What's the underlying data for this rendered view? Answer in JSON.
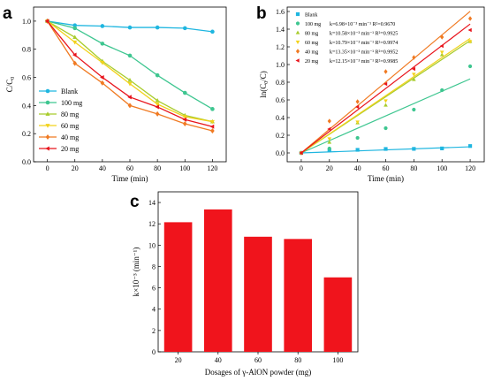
{
  "chart_data": [
    {
      "id": "a",
      "panel_label": "a",
      "type": "line",
      "xlabel": "Time (min)",
      "ylabel": "C/C",
      "ylabel_sub": "0",
      "xlim": [
        -10,
        130
      ],
      "ylim": [
        0,
        1.1
      ],
      "xticks": [
        0,
        20,
        40,
        60,
        80,
        100,
        120
      ],
      "yticks": [
        0.0,
        0.2,
        0.4,
        0.6,
        0.8,
        1.0
      ],
      "ytick_labels": [
        "0.0",
        "0.2",
        "0.4",
        "0.6",
        "0.8",
        "1.0"
      ],
      "legend_position": "lower-left",
      "x": [
        0,
        20,
        40,
        60,
        80,
        100,
        120
      ],
      "series": [
        {
          "name": "Blank",
          "color": "#1fb6e0",
          "marker": "circle",
          "values": [
            1.0,
            0.97,
            0.965,
            0.955,
            0.955,
            0.95,
            0.925
          ]
        },
        {
          "name": "100 mg",
          "color": "#3ec690",
          "marker": "circle",
          "values": [
            1.0,
            0.95,
            0.84,
            0.755,
            0.615,
            0.49,
            0.375
          ]
        },
        {
          "name": "80 mg",
          "color": "#a8cc2c",
          "marker": "triangle",
          "values": [
            1.0,
            0.885,
            0.715,
            0.58,
            0.435,
            0.33,
            0.285
          ]
        },
        {
          "name": "60 mg",
          "color": "#f2d21c",
          "marker": "triangle-down",
          "values": [
            1.0,
            0.85,
            0.705,
            0.555,
            0.41,
            0.32,
            0.285
          ]
        },
        {
          "name": "40 mg",
          "color": "#f07a22",
          "marker": "diamond",
          "values": [
            1.0,
            0.7,
            0.56,
            0.4,
            0.34,
            0.27,
            0.22
          ]
        },
        {
          "name": "20 mg",
          "color": "#e8141c",
          "marker": "triangle-left",
          "values": [
            1.0,
            0.76,
            0.6,
            0.46,
            0.39,
            0.3,
            0.25
          ]
        }
      ]
    },
    {
      "id": "b",
      "panel_label": "b",
      "type": "scatter",
      "xlabel": "Time (min)",
      "ylabel": "ln(C",
      "ylabel_sub": "0",
      "ylabel_tail": "/C)",
      "xlim": [
        -10,
        130
      ],
      "ylim": [
        -0.1,
        1.65
      ],
      "xticks": [
        0,
        20,
        40,
        60,
        80,
        100,
        120
      ],
      "yticks": [
        0.0,
        0.2,
        0.4,
        0.6,
        0.8,
        1.0,
        1.2,
        1.4,
        1.6
      ],
      "ytick_labels": [
        "0.0",
        "0.2",
        "0.4",
        "0.6",
        "0.8",
        "1.0",
        "1.2",
        "1.4",
        "1.6"
      ],
      "legend_position": "top-left",
      "x": [
        0,
        20,
        40,
        60,
        80,
        100,
        120
      ],
      "series": [
        {
          "name": "Blank",
          "legend_text": "",
          "color": "#1fb6e0",
          "marker": "square",
          "values": [
            0,
            0.03,
            0.035,
            0.045,
            0.046,
            0.051,
            0.078
          ],
          "fit_slope": 0.00058
        },
        {
          "name": "100 mg",
          "legend_text": "k=6.98×10⁻³ min⁻¹ R²=0.9670",
          "color": "#3ec690",
          "marker": "circle",
          "values": [
            0,
            0.05,
            0.17,
            0.28,
            0.49,
            0.71,
            0.98
          ],
          "fit_slope": 0.00698
        },
        {
          "name": "80 mg",
          "legend_text": "k=10.58×10⁻³ min⁻¹ R²=0.9925",
          "color": "#a8cc2c",
          "marker": "triangle",
          "values": [
            0,
            0.12,
            0.34,
            0.54,
            0.83,
            1.11,
            1.26
          ],
          "fit_slope": 0.01058
        },
        {
          "name": "60 mg",
          "legend_text": "k=10.79×10⁻³ min⁻¹ R²=0.9974",
          "color": "#f2d21c",
          "marker": "triangle-down",
          "values": [
            0,
            0.16,
            0.35,
            0.59,
            0.89,
            1.14,
            1.26
          ],
          "fit_slope": 0.01079
        },
        {
          "name": "40 mg",
          "legend_text": "k=13.35×10⁻³ min⁻¹ R²=0.9952",
          "color": "#f07a22",
          "marker": "diamond",
          "values": [
            0,
            0.36,
            0.58,
            0.92,
            1.08,
            1.31,
            1.52
          ],
          "fit_slope": 0.01335
        },
        {
          "name": "20 mg",
          "legend_text": "k=12.15×10⁻³ min⁻¹ R²=0.9985",
          "color": "#e8141c",
          "marker": "triangle-left",
          "values": [
            0,
            0.27,
            0.52,
            0.78,
            0.95,
            1.21,
            1.39
          ],
          "fit_slope": 0.01215
        }
      ]
    },
    {
      "id": "c",
      "panel_label": "c",
      "type": "bar",
      "xlabel": "Dosages of γ-AlON powder  (mg)",
      "ylabel": "k×10⁻³ (min⁻¹)",
      "ylim": [
        0,
        15
      ],
      "yticks": [
        0,
        2,
        4,
        6,
        8,
        10,
        12,
        14
      ],
      "color": "#f0141c",
      "categories": [
        "20",
        "40",
        "60",
        "80",
        "100"
      ],
      "values": [
        12.15,
        13.35,
        10.79,
        10.58,
        6.98
      ]
    }
  ]
}
